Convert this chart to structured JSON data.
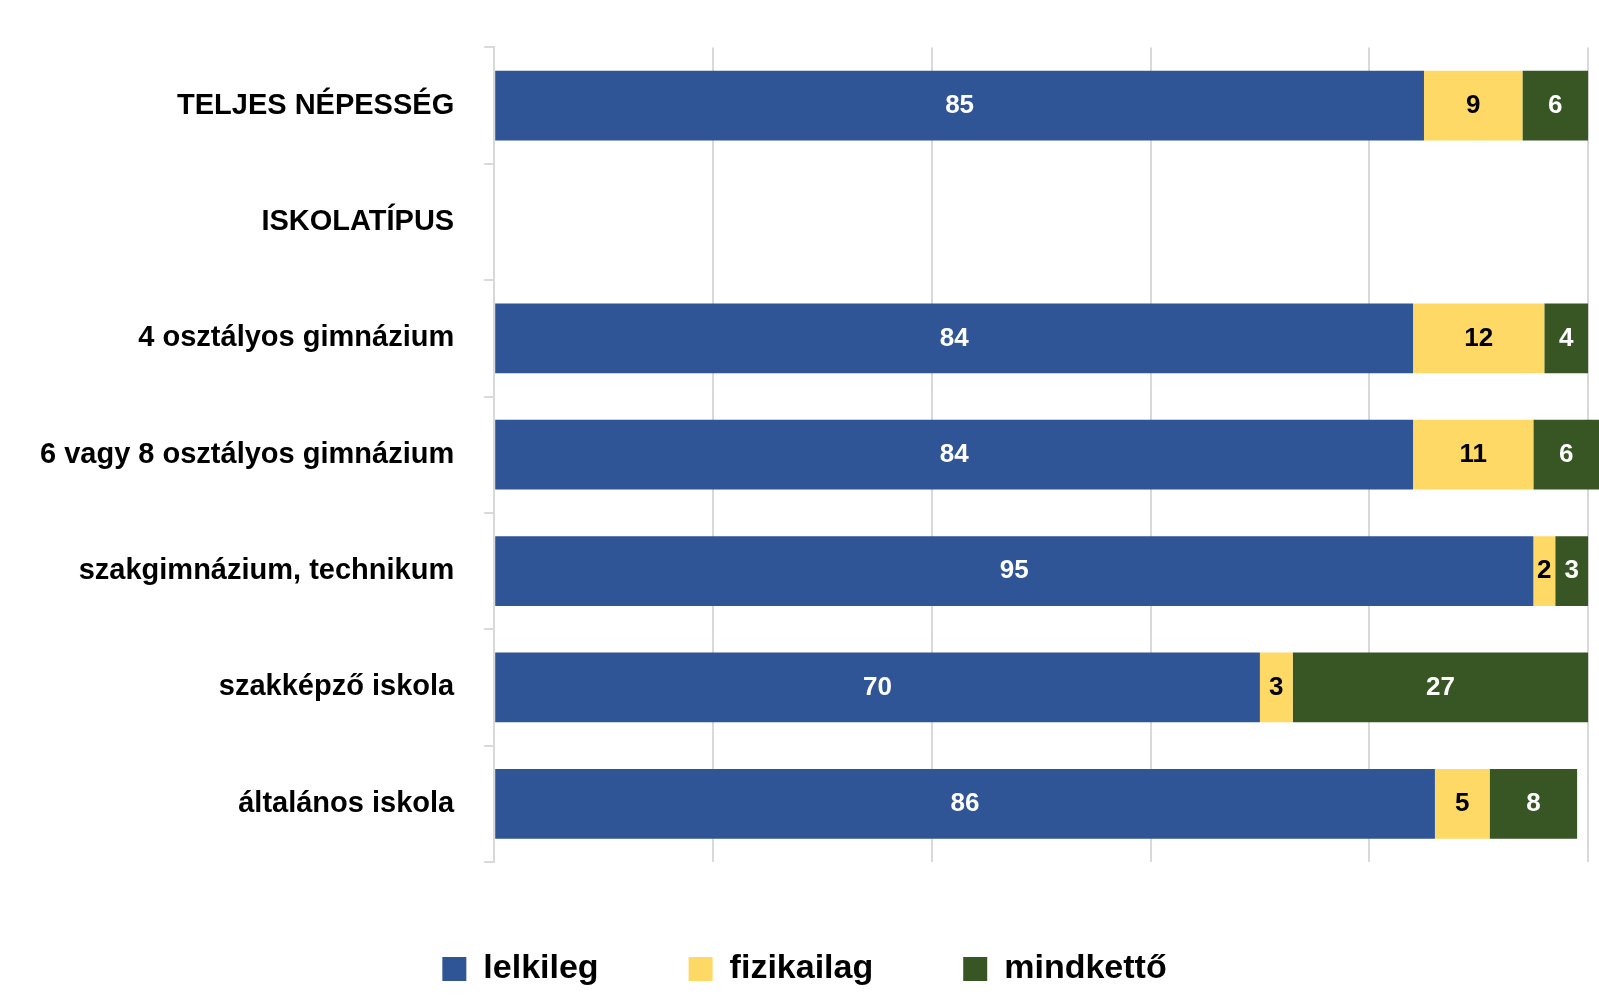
{
  "chart_data": {
    "type": "bar",
    "orientation": "horizontal",
    "stacked": true,
    "data_labels": true,
    "grid": "x",
    "legend": "bottom",
    "tick_labels": "y",
    "categories": [
      "TELJES NÉPESSÉG",
      "ISKOLATÍPUS",
      "4 osztályos gimnázium",
      "6 vagy 8 osztályos gimnázium",
      "szakgimnázium, technikum",
      "szakképző iskola",
      "általános iskola"
    ],
    "xlim": [
      0,
      101
    ],
    "xticks": [
      {
        "value": 0,
        "label": null
      },
      {
        "value": 20,
        "label": null
      },
      {
        "value": 40,
        "label": null
      },
      {
        "value": 60,
        "label": null
      },
      {
        "value": 80,
        "label": null
      },
      {
        "value": 100,
        "label": null
      }
    ],
    "series": [
      {
        "name": "lelkileg",
        "color": "#2f5597",
        "values": [
          85,
          null,
          84,
          84,
          95,
          70,
          86
        ]
      },
      {
        "name": "fizikailag",
        "color": "#ffd966",
        "values": [
          9,
          null,
          12,
          11,
          2,
          3,
          5
        ]
      },
      {
        "name": "mindkettő",
        "color": "#375623",
        "values": [
          6,
          null,
          4,
          6,
          3,
          27,
          8
        ]
      }
    ]
  }
}
